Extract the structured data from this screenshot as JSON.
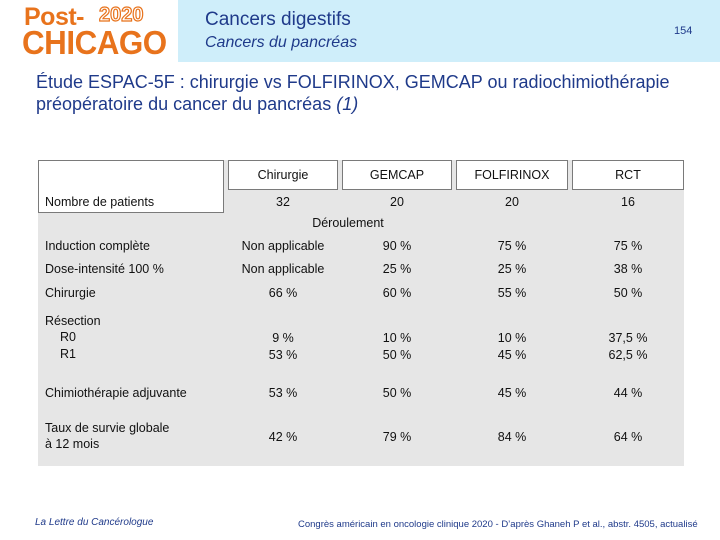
{
  "header": {
    "logo_post": "Post-",
    "logo_year": "2020",
    "logo_city": "CHICAGO",
    "title": "Cancers digestifs",
    "subtitle": "Cancers du pancréas",
    "page_number": "154"
  },
  "main_title": {
    "text": "Étude ESPAC-5F : chirurgie vs FOLFIRINOX, GEMCAP ou radiochimiothérapie préopératoire du cancer du pancréas",
    "ref": "(1)"
  },
  "table": {
    "columns": [
      "Chirurgie",
      "GEMCAP",
      "FOLFIRINOX",
      "RCT"
    ],
    "patients_label": "Nombre de patients",
    "patients": [
      "32",
      "20",
      "20",
      "16"
    ],
    "section_label": "Déroulement",
    "rows": [
      {
        "label": "Induction complète",
        "values": [
          "Non applicable",
          "90 %",
          "75 %",
          "75 %"
        ]
      },
      {
        "label": "Dose-intensité 100 %",
        "values": [
          "Non applicable",
          "25 %",
          "25 %",
          "38 %"
        ]
      },
      {
        "label": "Chirurgie",
        "values": [
          "66 %",
          "60 %",
          "55 %",
          "50 %"
        ]
      },
      {
        "label": "Résection",
        "sublabels": [
          "R0",
          "R1"
        ],
        "values": [
          [
            "9 %",
            "53 %"
          ],
          [
            "10 %",
            "50 %"
          ],
          [
            "10 %",
            "45 %"
          ],
          [
            "37,5 %",
            "62,5 %"
          ]
        ]
      },
      {
        "label": "Chimiothérapie adjuvante",
        "values": [
          "53 %",
          "50 %",
          "45 %",
          "44 %"
        ]
      },
      {
        "label_lines": [
          "Taux de survie globale",
          "à 12 mois"
        ],
        "values": [
          "42 %",
          "79 %",
          "84 %",
          "64 %"
        ]
      }
    ]
  },
  "footer": {
    "left": "La Lettre du Cancérologue",
    "right": "Congrès américain en oncologie clinique 2020 - D’après Ghaneh P et al., abstr. 4505, actualisé"
  }
}
